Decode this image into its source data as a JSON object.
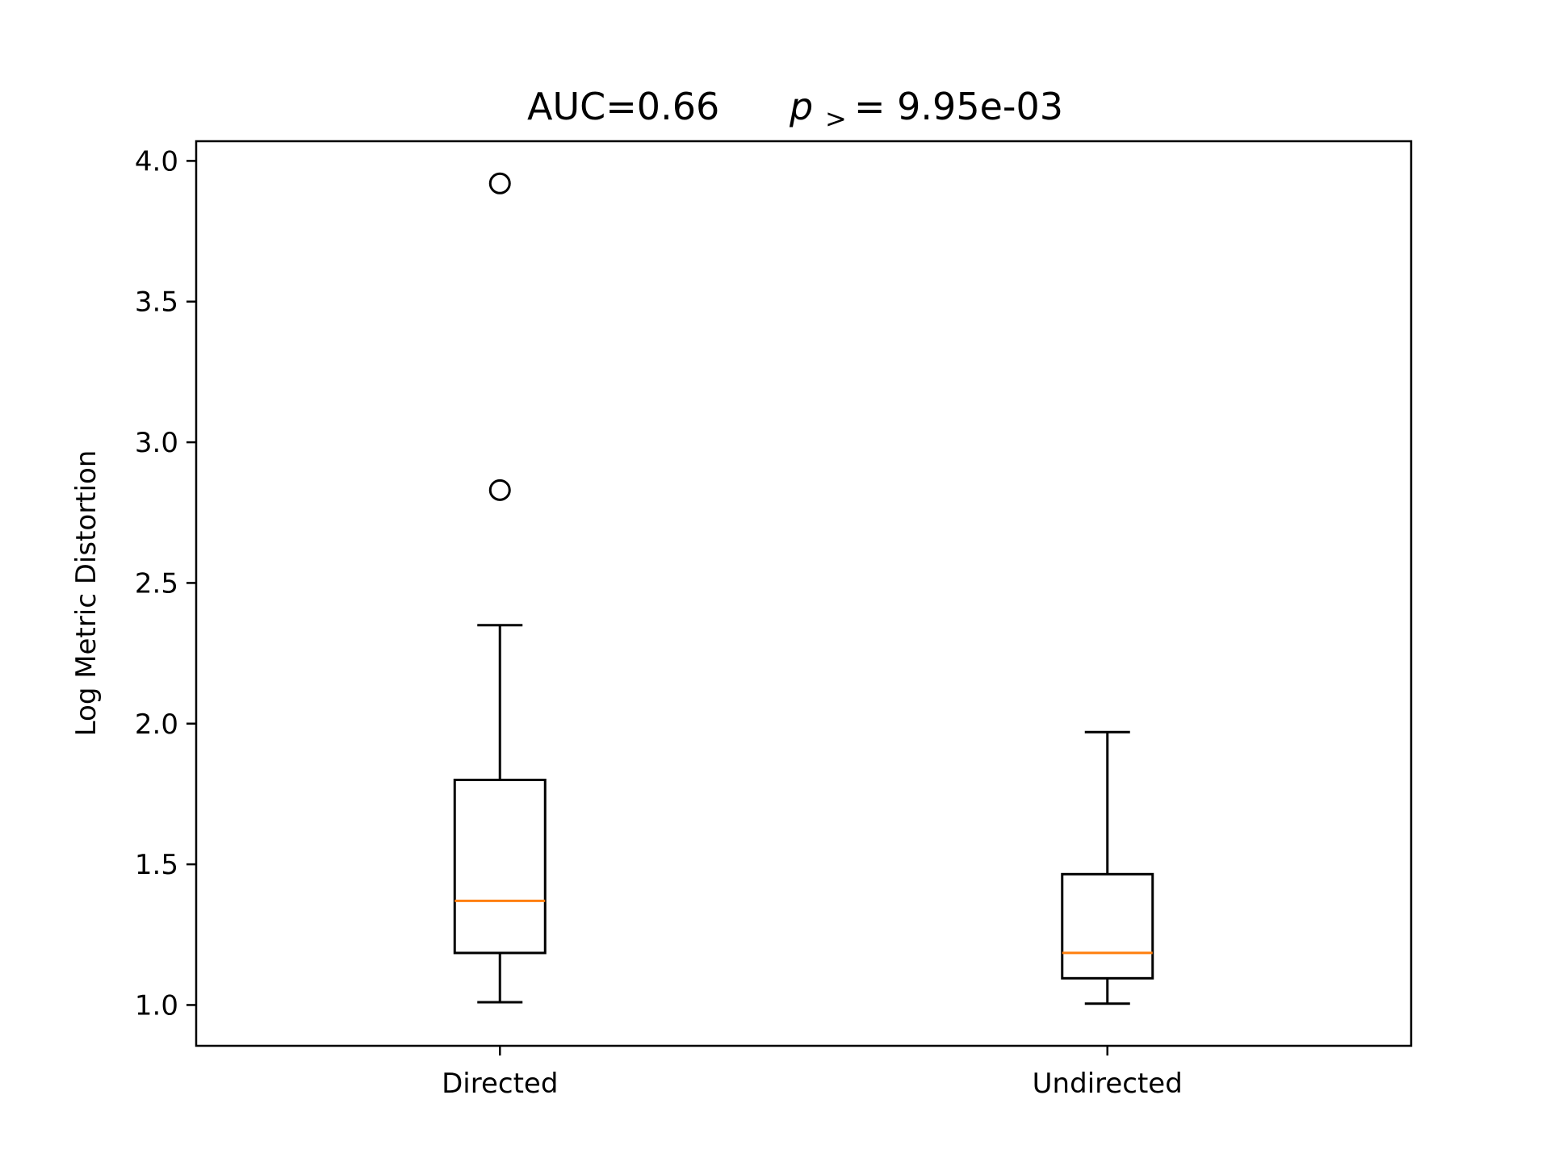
{
  "chart_data": {
    "type": "box",
    "title": {
      "auc_text": "AUC=0.66",
      "p_symbol": "p",
      "p_subscript": ">",
      "p_value_text": "= 9.95e-03"
    },
    "ylabel": "Log Metric Distortion",
    "xlabel": "",
    "ylim": [
      0.855,
      4.07
    ],
    "yticks": [
      1.0,
      1.5,
      2.0,
      2.5,
      3.0,
      3.5,
      4.0
    ],
    "ytick_labels": [
      "1.0",
      "1.5",
      "2.0",
      "2.5",
      "3.0",
      "3.5",
      "4.0"
    ],
    "grid": false,
    "colors": {
      "box": "#000000",
      "median": "#ff7f0e"
    },
    "categories": [
      "Directed",
      "Undirected"
    ],
    "boxes": [
      {
        "name": "Directed",
        "whisker_low": 1.01,
        "q1": 1.185,
        "median": 1.37,
        "q3": 1.8,
        "whisker_high": 2.35,
        "outliers": [
          2.83,
          3.92
        ]
      },
      {
        "name": "Undirected",
        "whisker_low": 1.005,
        "q1": 1.095,
        "median": 1.185,
        "q3": 1.465,
        "whisker_high": 1.97,
        "outliers": []
      }
    ]
  }
}
